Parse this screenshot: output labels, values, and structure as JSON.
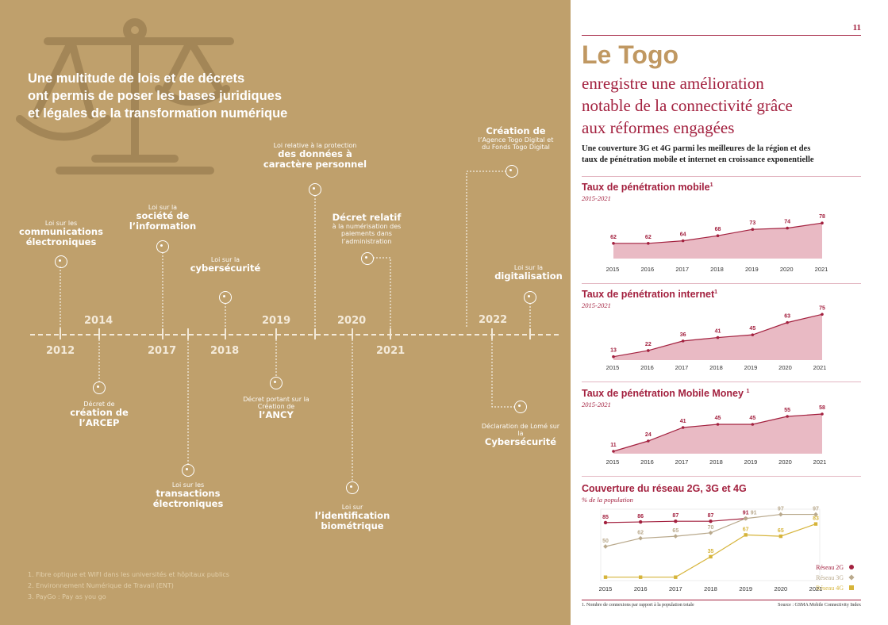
{
  "left": {
    "headline": [
      "Une multitude de lois et de décrets",
      "ont permis de poser les bases juridiques",
      "et légales de la transformation numérique"
    ],
    "years_top": [
      "2014",
      "2019",
      "2020",
      "2022"
    ],
    "years_bottom": [
      "2012",
      "2017",
      "2018",
      "2021"
    ],
    "events_above": [
      {
        "small": "Loi sur les",
        "big": "communications électroniques"
      },
      {
        "small": "Loi sur la",
        "big": "société de l’information"
      },
      {
        "small": "Loi sur la",
        "big": "cybersécurité"
      },
      {
        "small": "Loi relative à la protection",
        "big": "des données à caractère personnel"
      },
      {
        "big": "Décret relatif",
        "small": "à la numérisation des paiements dans l’administration"
      },
      {
        "big": "Création de",
        "small": "l’Agence Togo Digital et du Fonds Togo Digital"
      },
      {
        "small": "Loi sur la",
        "big": "digitalisation"
      }
    ],
    "events_below": [
      {
        "small": "Décret de",
        "big": "création de l’ARCEP"
      },
      {
        "small": "Loi sur les",
        "big": "transactions électroniques"
      },
      {
        "small": "Décret portant sur la Création de",
        "big": "l’ANCY"
      },
      {
        "small": "Loi sur",
        "big": "l’identification biométrique"
      },
      {
        "small": "Déclaration de Lomé sur la",
        "big": "Cybersécurité"
      }
    ],
    "footnotes": [
      "1. Fibre optique et WIFI dans les universités et hôpitaux publics",
      "2. Environnement Numérique de Travail (ENT)",
      "3. PayGo : Pay as you go"
    ]
  },
  "right": {
    "page_number": "11",
    "title": "Le Togo",
    "subtitle": [
      "enregistre une amélioration",
      "notable de la connectivité grâce",
      "aux réformes engagées"
    ],
    "lead": [
      "Une couverture 3G et 4G parmi les meilleures de la région et des",
      "taux de pénétration mobile et internet en croissance exponentielle"
    ],
    "footer_left": "1. Nombre de connexions par rapport à la population totale",
    "footer_right": "Source : GSMA Mobile Connectivity Index"
  },
  "chart_data": [
    {
      "type": "area",
      "title": "Taux de pénétration mobile",
      "title_sup": "1",
      "subtitle": "2015-2021",
      "x": [
        "2015",
        "2016",
        "2017",
        "2018",
        "2019",
        "2020",
        "2021"
      ],
      "values": [
        62,
        62,
        64,
        68,
        73,
        74,
        78
      ],
      "ylim": [
        50,
        85
      ],
      "color": "#a3213f",
      "fill": "#e9bac4"
    },
    {
      "type": "area",
      "title": "Taux de pénétration internet",
      "title_sup": "1",
      "subtitle": "2015-2021",
      "x": [
        "2015",
        "2016",
        "2017",
        "2018",
        "2019",
        "2020",
        "2021"
      ],
      "values": [
        13,
        22,
        36,
        41,
        45,
        63,
        75
      ],
      "ylim": [
        8,
        80
      ],
      "color": "#a3213f",
      "fill": "#e9bac4"
    },
    {
      "type": "area",
      "title": "Taux de pénétration Mobile Money",
      "title_sup": "1",
      "subtitle": "2015-2021",
      "x": [
        "2015",
        "2016",
        "2017",
        "2018",
        "2019",
        "2020",
        "2021"
      ],
      "values": [
        11,
        24,
        41,
        45,
        45,
        55,
        58
      ],
      "ylim": [
        8,
        62
      ],
      "color": "#a3213f",
      "fill": "#e9bac4"
    },
    {
      "type": "line",
      "title": "Couverture du réseau 2G, 3G et 4G",
      "subtitle": "% de la population",
      "x": [
        "2015",
        "2016",
        "2017",
        "2018",
        "2019",
        "2020",
        "2021"
      ],
      "ylim": [
        0,
        100
      ],
      "series": [
        {
          "name": "Réseau 2G",
          "color": "#a3213f",
          "marker": "circle",
          "values": [
            85,
            86,
            87,
            87,
            91,
            null,
            null
          ],
          "labels": [
            "85",
            "86",
            "87",
            "87",
            "91",
            "",
            ""
          ]
        },
        {
          "name": "Réseau 3G",
          "color": "#b9a98c",
          "marker": "diamond",
          "values": [
            50,
            62,
            65,
            70,
            91,
            97,
            97
          ],
          "labels": [
            "50",
            "62",
            "65",
            "70",
            "91",
            "97",
            "97"
          ]
        },
        {
          "name": "Réseau 4G",
          "color": "#d6b43a",
          "marker": "square",
          "values": [
            5,
            5,
            5,
            35,
            67,
            65,
            83
          ],
          "labels": [
            "",
            "",
            "",
            "35",
            "67",
            "65",
            "83"
          ]
        }
      ]
    }
  ]
}
